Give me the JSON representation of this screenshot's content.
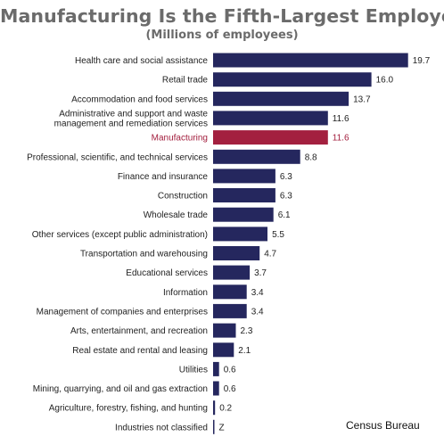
{
  "chart_data": {
    "type": "bar",
    "orientation": "horizontal",
    "title": "Manufacturing Is the Fifth-Largest Employer",
    "subtitle": "(Millions of employees)",
    "categories": [
      "Health care and social assistance",
      "Retail trade",
      "Accommodation and food services",
      "Administrative and support and waste management and remediation services",
      "Manufacturing",
      "Professional, scientific, and technical services",
      "Finance and insurance",
      "Construction",
      "Wholesale trade",
      "Other services (except public administration)",
      "Transportation and warehousing",
      "Educational services",
      "Information",
      "Management of companies and enterprises",
      "Arts, entertainment, and recreation",
      "Real estate and rental and leasing",
      "Utilities",
      "Mining, quarrying, and oil and gas extraction",
      "Agriculture, forestry, fishing, and hunting",
      "Industries not classified"
    ],
    "values": [
      19.7,
      16.0,
      13.7,
      11.6,
      11.6,
      8.8,
      6.3,
      6.3,
      6.1,
      5.5,
      4.7,
      3.7,
      3.4,
      3.4,
      2.3,
      2.1,
      0.6,
      0.6,
      0.2,
      0
    ],
    "value_labels": [
      "19.7",
      "16.0",
      "13.7",
      "11.6",
      "11.6",
      "8.8",
      "6.3",
      "6.3",
      "6.1",
      "5.5",
      "4.7",
      "3.7",
      "3.4",
      "3.4",
      "2.3",
      "2.1",
      "0.6",
      "0.6",
      "0.2",
      "Z"
    ],
    "highlight_index": 4,
    "xlim": [
      0,
      20
    ],
    "grid": false,
    "legend": "none",
    "colors": {
      "bar": "#25275e",
      "highlight": "#a3203f",
      "label": "#222222",
      "highlight_label": "#a3203f",
      "title": "#6b6b6b"
    }
  },
  "source": "Census Bureau"
}
